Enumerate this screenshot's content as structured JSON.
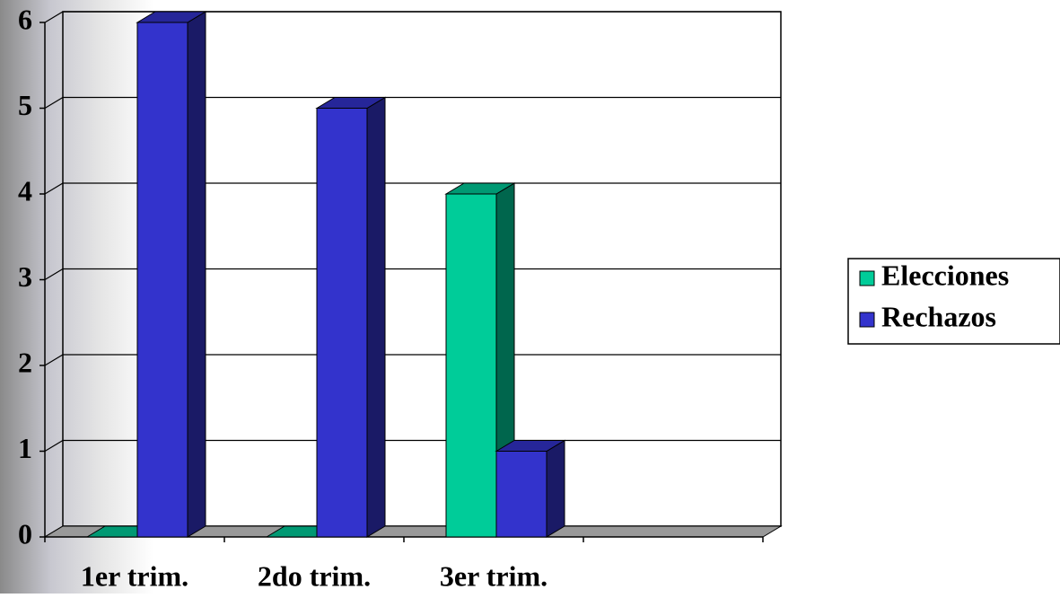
{
  "chart_data": {
    "type": "bar3d",
    "categories": [
      "1er trim.",
      "2do trim.",
      "3er trim.",
      null
    ],
    "series": [
      {
        "name": "Elecciones",
        "color": "#00cc99",
        "values": [
          0,
          0,
          4,
          null
        ]
      },
      {
        "name": "Rechazos",
        "color": "#3333cc",
        "values": [
          6,
          5,
          1,
          null
        ]
      }
    ],
    "ylim": [
      0,
      6
    ],
    "yticks": [
      0,
      1,
      2,
      3,
      4,
      5,
      6
    ],
    "grid": true,
    "legend": "right"
  }
}
